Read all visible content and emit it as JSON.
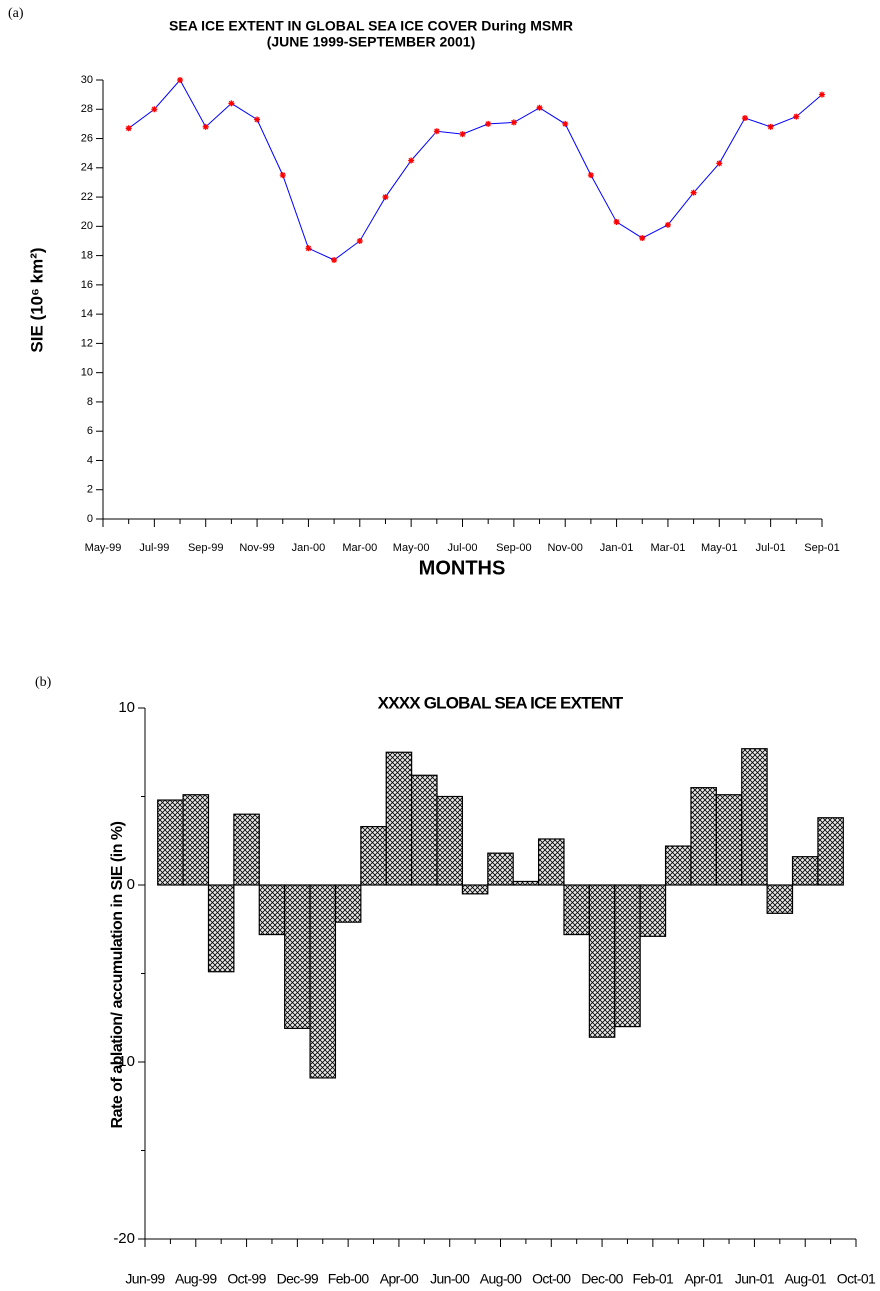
{
  "chart_data": [
    {
      "type": "line",
      "label": "(a)",
      "title": "SEA ICE EXTENT IN GLOBAL SEA ICE COVER During MSMR",
      "subtitle": "(JUNE 1999-SEPTEMBER 2001)",
      "xlabel": "MONTHS",
      "ylabel": "SIE (10⁶ km²)",
      "categories": [
        "May-99",
        null,
        "Jul-99",
        null,
        "Sep-99",
        null,
        "Nov-99",
        null,
        "Jan-00",
        null,
        "Mar-00",
        null,
        "May-00",
        null,
        "Jul-00",
        null,
        "Sep-00",
        null,
        "Nov-00",
        null,
        "Jan-01",
        null,
        "Mar-01",
        null,
        "May-01",
        null,
        "Jul-01",
        null,
        "Sep-01"
      ],
      "values": [
        null,
        26.7,
        28.0,
        30.0,
        26.8,
        28.4,
        27.3,
        23.5,
        18.5,
        17.7,
        19.0,
        22.0,
        24.5,
        26.5,
        26.3,
        27.0,
        27.1,
        28.1,
        27.0,
        23.5,
        20.3,
        19.2,
        20.1,
        22.3,
        24.3,
        27.4,
        26.8,
        27.5,
        29.0
      ],
      "color": "#0000ff",
      "marker_color": "#ff0000",
      "ylim": [
        0,
        30
      ],
      "yticks": [
        0,
        2,
        4,
        6,
        8,
        10,
        12,
        14,
        16,
        18,
        20,
        22,
        24,
        26,
        28,
        30
      ]
    },
    {
      "type": "bar",
      "label": "(b)",
      "title": "XXXX GLOBAL SEA ICE EXTENT",
      "ylabel": "Rate of ablation/ accumulation in SIE (in %)",
      "categories": [
        "Jun-99",
        null,
        "Aug-99",
        null,
        "Oct-99",
        null,
        "Dec-99",
        null,
        "Feb-00",
        null,
        "Apr-00",
        null,
        "Jun-00",
        null,
        "Aug-00",
        null,
        "Oct-00",
        null,
        "Dec-00",
        null,
        "Feb-01",
        null,
        "Apr-01",
        null,
        "Jun-01",
        null,
        "Aug-01",
        null,
        "Oct-01"
      ],
      "values": [
        null,
        4.8,
        5.1,
        -4.9,
        4.0,
        -2.8,
        -8.1,
        -10.9,
        -2.1,
        3.3,
        7.5,
        6.2,
        5.0,
        -0.5,
        1.8,
        0.2,
        2.6,
        -2.8,
        -8.6,
        -8.0,
        -2.9,
        2.2,
        5.5,
        5.1,
        7.7,
        -1.6,
        1.6,
        3.8,
        null
      ],
      "color": "#000000",
      "ylim": [
        -20,
        10
      ],
      "yticks": [
        -20,
        -10,
        0,
        10
      ]
    }
  ]
}
